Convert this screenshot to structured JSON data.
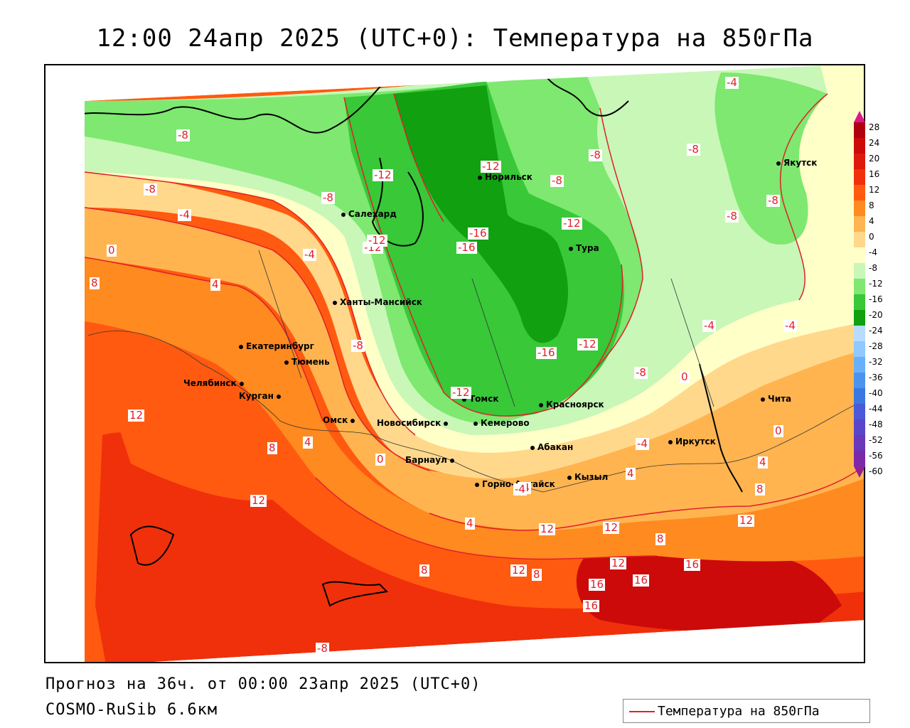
{
  "title": "12:00 24апр 2025 (UTC+0): Температура на 850гПа",
  "footer": {
    "forecast": "Прогноз на 36ч. от 00:00 23апр 2025 (UTC+0)",
    "model": "COSMO-RuSib 6.6км"
  },
  "legend": {
    "label": "Температура на 850гПа",
    "line_color": "#e0202a"
  },
  "colorbar": {
    "labels": [
      "28",
      "24",
      "20",
      "16",
      "12",
      "8",
      "4",
      "0",
      "-4",
      "-8",
      "-12",
      "-16",
      "-20",
      "-24",
      "-28",
      "-32",
      "-36",
      "-40",
      "-44",
      "-48",
      "-52",
      "-56",
      "-60"
    ],
    "colors": [
      "#b00010",
      "#cc0a0a",
      "#e01a0a",
      "#f0300a",
      "#ff5a10",
      "#ff8a20",
      "#ffb450",
      "#ffd88c",
      "#ffffc8",
      "#c8f7b8",
      "#7ee870",
      "#38c838",
      "#10a010",
      "#b8dcff",
      "#90c8ff",
      "#6ab0f8",
      "#4a94ee",
      "#3a78e0",
      "#4a5ad8",
      "#5a46c8",
      "#6a38b8",
      "#7a2aa8",
      "#902098"
    ]
  },
  "cities": [
    {
      "name": "Норильск"
    },
    {
      "name": "Якутск"
    },
    {
      "name": "Салехард"
    },
    {
      "name": "Тура"
    },
    {
      "name": "Ханты-Мансийск"
    },
    {
      "name": "Екатеринбург"
    },
    {
      "name": "Тюмень"
    },
    {
      "name": "Челябинск"
    },
    {
      "name": "Курган"
    },
    {
      "name": "Омск"
    },
    {
      "name": "Новосибирск"
    },
    {
      "name": "Томск"
    },
    {
      "name": "Кемерово"
    },
    {
      "name": "Красноярск"
    },
    {
      "name": "Барнаул"
    },
    {
      "name": "Абакан"
    },
    {
      "name": "Горно-Алтайск"
    },
    {
      "name": "Кызыл"
    },
    {
      "name": "Иркутск"
    },
    {
      "name": "Чита"
    }
  ],
  "contour_labels": [
    "-4",
    "-8",
    "-8",
    "-8",
    "-8",
    "-4",
    "0",
    "8",
    "4",
    "-4",
    "-8",
    "-12",
    "-8",
    "-12",
    "-16",
    "-16",
    "-12",
    "-8",
    "-8",
    "-4",
    "-4",
    "-12",
    "-16",
    "-12",
    "-8",
    "0",
    "-12",
    "-8",
    "12",
    "8",
    "4",
    "0",
    "12",
    "8",
    "-4",
    "4",
    "8",
    "12",
    "12",
    "8",
    "16",
    "16",
    "16",
    "12",
    "16",
    "12",
    "12",
    "4",
    "-4",
    "0",
    "-4",
    "4",
    "8",
    "-12",
    "-8"
  ]
}
